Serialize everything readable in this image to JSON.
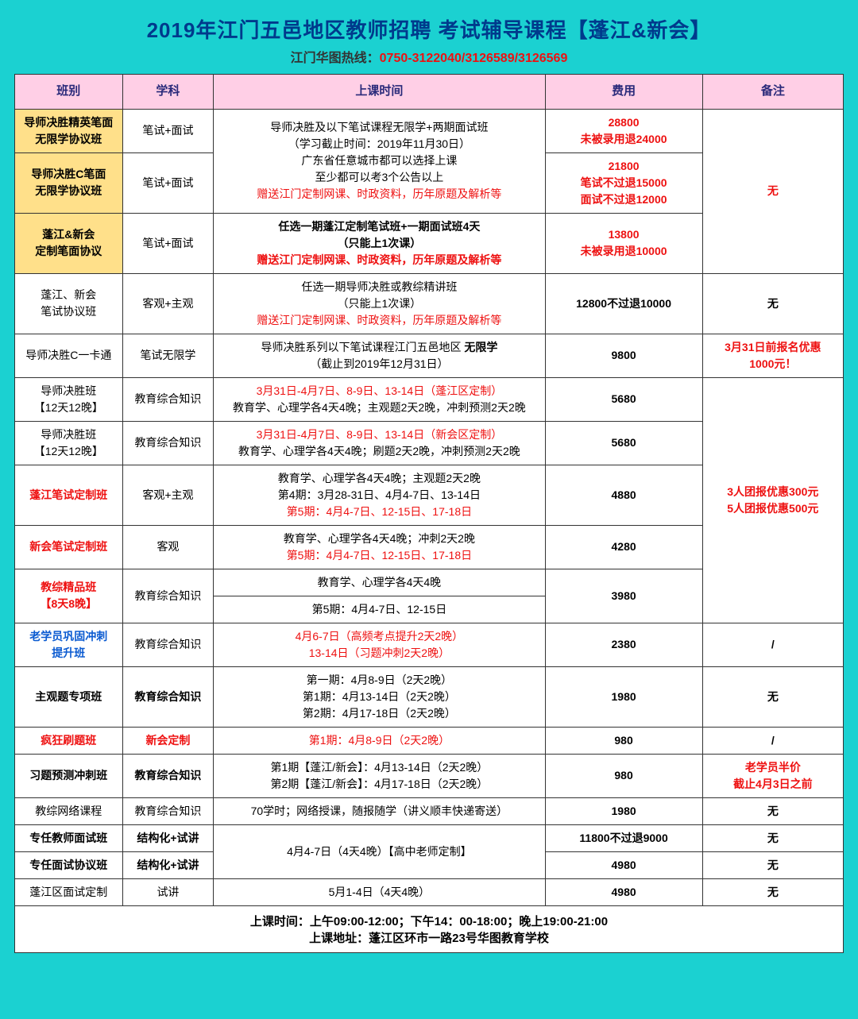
{
  "header": {
    "title": "2019年江门五邑地区教师招聘 考试辅导课程【蓬江&新会】",
    "hotline_label": "江门华图热线：",
    "hotline_nums": "0750-3122040/3126589/3126569"
  },
  "columns": {
    "c1": "班别",
    "c2": "学科",
    "c3": "上课时间",
    "c4": "费用",
    "c5": "备注"
  },
  "rows": {
    "r1_class": "导师决胜精英笔面\n无限学协议班",
    "r1_subj": "笔试+面试",
    "r1_fee_a": "28800",
    "r1_fee_b": "未被录用退24000",
    "r2_class": "导师决胜C笔面\n无限学协议班",
    "r2_subj": "笔试+面试",
    "time_block1_a": "导师决胜及以下笔试课程无限学+两期面试班",
    "time_block1_b": "（学习截止时间：2019年11月30日）",
    "time_block1_c": "广东省任意城市都可以选择上课",
    "time_block1_d": "至少都可以考3个公告以上",
    "time_block1_e": "赠送江门定制网课、时政资料，历年原题及解析等",
    "r2_fee_a": "21800",
    "r2_fee_b": "笔试不过退15000",
    "r2_fee_c": "面试不过退12000",
    "note_none": "无",
    "r3_class": "蓬江&新会\n定制笔面协议",
    "r3_subj": "笔试+面试",
    "r3_time_a": "任选一期蓬江定制笔试班+一期面试班4天",
    "r3_time_b": "（只能上1次课）",
    "r3_time_c": "赠送江门定制网课、时政资料，历年原题及解析等",
    "r3_fee_a": "13800",
    "r3_fee_b": "未被录用退10000",
    "r4_class": "蓬江、新会\n笔试协议班",
    "r4_subj": "客观+主观",
    "r4_time_a": "任选一期导师决胜或教综精讲班",
    "r4_time_b": "（只能上1次课）",
    "r4_time_c": "赠送江门定制网课、时政资料，历年原题及解析等",
    "r4_fee": "12800不过退10000",
    "r5_class": "导师决胜C一卡通",
    "r5_subj": "笔试无限学",
    "r5_time_a": "导师决胜系列以下笔试课程江门五邑地区 ",
    "r5_time_b": "无限学",
    "r5_time_c": "（截止到2019年12月31日）",
    "r5_fee": "9800",
    "r5_note_a": "3月31日前报名优惠",
    "r5_note_b": "1000元！",
    "r6_class": "导师决胜班\n【12天12晚】",
    "r6_subj": "教育综合知识",
    "r6_time_a": "3月31日-4月7日、8-9日、13-14日（蓬江区定制）",
    "r6_time_b": "教育学、心理学各4天4晚；主观题2天2晚，冲刺预测2天2晚",
    "r6_fee": "5680",
    "r7_class": "导师决胜班\n【12天12晚】",
    "r7_subj": "教育综合知识",
    "r7_time_a": "3月31日-4月7日、8-9日、13-14日（新会区定制）",
    "r7_time_b": "教育学、心理学各4天4晚；刷题2天2晚，冲刺预测2天2晚",
    "r7_fee": "5680",
    "r8_class": "蓬江笔试定制班",
    "r8_subj": "客观+主观",
    "r8_time_a": "教育学、心理学各4天4晚；主观题2天2晚",
    "r8_time_b": "第4期：3月28-31日、4月4-7日、13-14日",
    "r8_time_c": "第5期：4月4-7日、12-15日、17-18日",
    "r8_fee": "4880",
    "group_note_a": "3人团报优惠300元",
    "group_note_b": "5人团报优惠500元",
    "r9_class": "新会笔试定制班",
    "r9_subj": "客观",
    "r9_time_a": "教育学、心理学各4天4晚；冲刺2天2晚",
    "r9_time_b": "第5期：4月4-7日、12-15日、17-18日",
    "r9_fee": "4280",
    "r10_class": "教综精品班\n【8天8晚】",
    "r10_subj": "教育综合知识",
    "r10_time_a": "教育学、心理学各4天4晚",
    "r10_time_b": "第5期：4月4-7日、12-15日",
    "r10_fee": "3980",
    "r11_class": "老学员巩固冲刺\n提升班",
    "r11_subj": "教育综合知识",
    "r11_time_a": "4月6-7日（高频考点提升2天2晚）",
    "r11_time_b": "13-14日（习题冲刺2天2晚）",
    "r11_fee": "2380",
    "slash": "/",
    "r12_class": "主观题专项班",
    "r12_subj": "教育综合知识",
    "r12_time_a": "第一期：4月8-9日（2天2晚）",
    "r12_time_b": "第1期：4月13-14日（2天2晚）",
    "r12_time_c": "第2期：4月17-18日（2天2晚）",
    "r12_fee": "1980",
    "r13_class": "疯狂刷题班",
    "r13_subj": "新会定制",
    "r13_time": "第1期：4月8-9日（2天2晚）",
    "r13_fee": "980",
    "r14_class": "习题预测冲刺班",
    "r14_subj": "教育综合知识",
    "r14_time_a": "第1期【蓬江/新会】：4月13-14日（2天2晚）",
    "r14_time_b": "第2期【蓬江/新会】：4月17-18日（2天2晚）",
    "r14_fee": "980",
    "r14_note_a": "老学员半价",
    "r14_note_b": "截止4月3日之前",
    "r15_class": "教综网络课程",
    "r15_subj": "教育综合知识",
    "r15_time": "70学时；网络授课，随报随学（讲义顺丰快递寄送）",
    "r15_fee": "1980",
    "r16_class": "专任教师面试班",
    "r16_subj": "结构化+试讲",
    "r16_time": "4月4-7日（4天4晚）【高中老师定制】",
    "r16_fee": "11800不过退9000",
    "r17_class": "专任面试协议班",
    "r17_subj": "结构化+试讲",
    "r17_fee": "4980",
    "r18_class": "蓬江区面试定制",
    "r18_subj": "试讲",
    "r18_time": "5月1-4日（4天4晚）",
    "r18_fee": "4980"
  },
  "footer": {
    "line1": "上课时间：上午09:00-12:00；下午14：00-18:00；晚上19:00-21:00",
    "line2": "上课地址：蓬江区环市一路23号华图教育学校"
  },
  "colors": {
    "page_bg": "#1bd1d1",
    "header_pink": "#ffcfe6",
    "highlight_yellow": "#ffe08a",
    "title_blue": "#003a8c",
    "text_red": "#e11",
    "text_blue": "#0b5bd1"
  }
}
